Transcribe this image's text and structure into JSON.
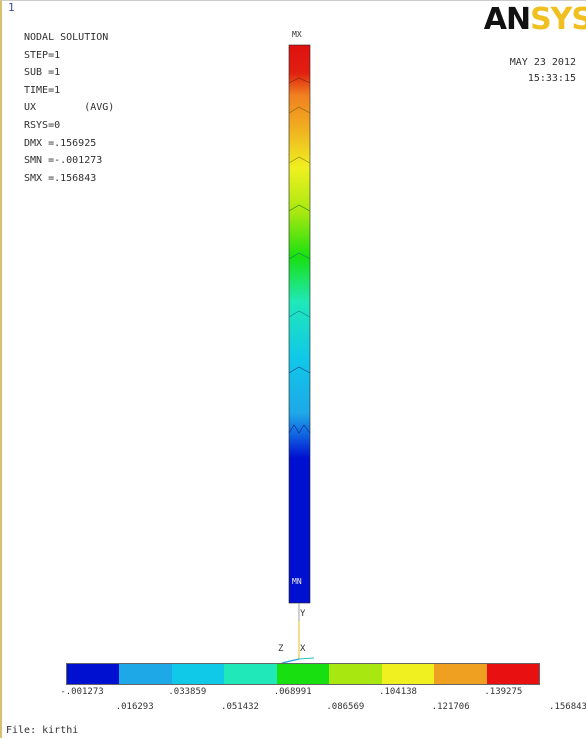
{
  "window": {
    "number": "1"
  },
  "logo": {
    "part1": "AN",
    "part2": "SYS"
  },
  "date": {
    "line1": "MAY 23 2012",
    "line2": "15:33:15"
  },
  "info_lines": [
    "NODAL SOLUTION",
    "STEP=1",
    "SUB =1",
    "TIME=1",
    "UX        (AVG)",
    "RSYS=0",
    "DMX =.156925",
    "SMN =-.001273",
    "SMX =.156843"
  ],
  "labels": {
    "mx": "MX",
    "mn": "MN"
  },
  "triad": {
    "y": "Y",
    "z": "Z",
    "x": "X"
  },
  "legend": {
    "colors": [
      "#0010d0",
      "#1ea8e8",
      "#10c8e8",
      "#20e8b8",
      "#18e010",
      "#a8e810",
      "#f0f020",
      "#f0a020",
      "#e81010"
    ],
    "ticks_top": [
      "-.001273",
      ".033859",
      ".068991",
      ".104138",
      ".139275"
    ],
    "ticks_bottom": [
      ".016293",
      ".051432",
      ".086569",
      ".121706",
      ".156843"
    ]
  },
  "file": "File: kirthi"
}
